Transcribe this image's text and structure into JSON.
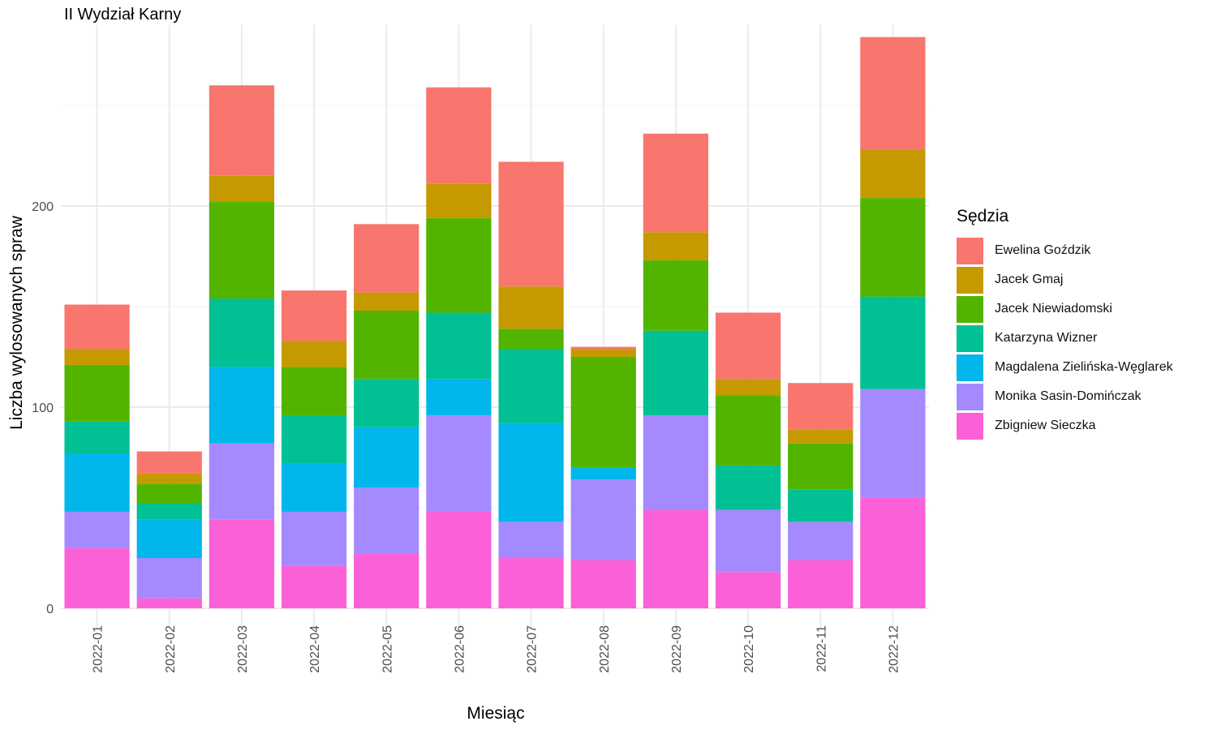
{
  "chart_data": {
    "type": "bar",
    "stacked": true,
    "title": "II Wydział Karny",
    "xlabel": "Miesiąc",
    "ylabel": "Liczba wylosowanych spraw",
    "ylim": [
      -10,
      290
    ],
    "yticks": [
      0,
      100,
      200
    ],
    "grid": true,
    "legend_title": "Sędzia",
    "legend_position": "right",
    "categories": [
      "2022-01",
      "2022-02",
      "2022-03",
      "2022-04",
      "2022-05",
      "2022-06",
      "2022-07",
      "2022-08",
      "2022-09",
      "2022-10",
      "2022-11",
      "2022-12"
    ],
    "series": [
      {
        "name": "Zbigniew Sieczka",
        "color": "#FB61D7",
        "values": [
          30,
          5,
          44,
          21,
          27,
          48,
          25,
          24,
          49,
          18,
          24,
          55
        ]
      },
      {
        "name": "Monika Sasin-Domińczak",
        "color": "#A58AFF",
        "values": [
          18,
          20,
          38,
          27,
          33,
          48,
          18,
          40,
          47,
          31,
          19,
          54
        ]
      },
      {
        "name": "Magdalena Zielińska-Węglarek",
        "color": "#00B6EB",
        "values": [
          29,
          19,
          38,
          24,
          30,
          18,
          49,
          6,
          0,
          0,
          0,
          0
        ]
      },
      {
        "name": "Katarzyna Wizner",
        "color": "#00C094",
        "values": [
          16,
          8,
          34,
          24,
          24,
          33,
          37,
          0,
          42,
          22,
          16,
          46
        ]
      },
      {
        "name": "Jacek Niewiadomski",
        "color": "#53B400",
        "values": [
          28,
          10,
          48,
          24,
          34,
          47,
          10,
          55,
          35,
          35,
          23,
          49
        ]
      },
      {
        "name": "Jacek Gmaj",
        "color": "#C49A00",
        "values": [
          8,
          5,
          13,
          13,
          9,
          17,
          21,
          4,
          14,
          8,
          7,
          24
        ]
      },
      {
        "name": "Ewelina Goździk",
        "color": "#F8766D",
        "values": [
          22,
          11,
          45,
          25,
          34,
          48,
          62,
          1,
          49,
          33,
          23,
          56
        ]
      }
    ]
  }
}
